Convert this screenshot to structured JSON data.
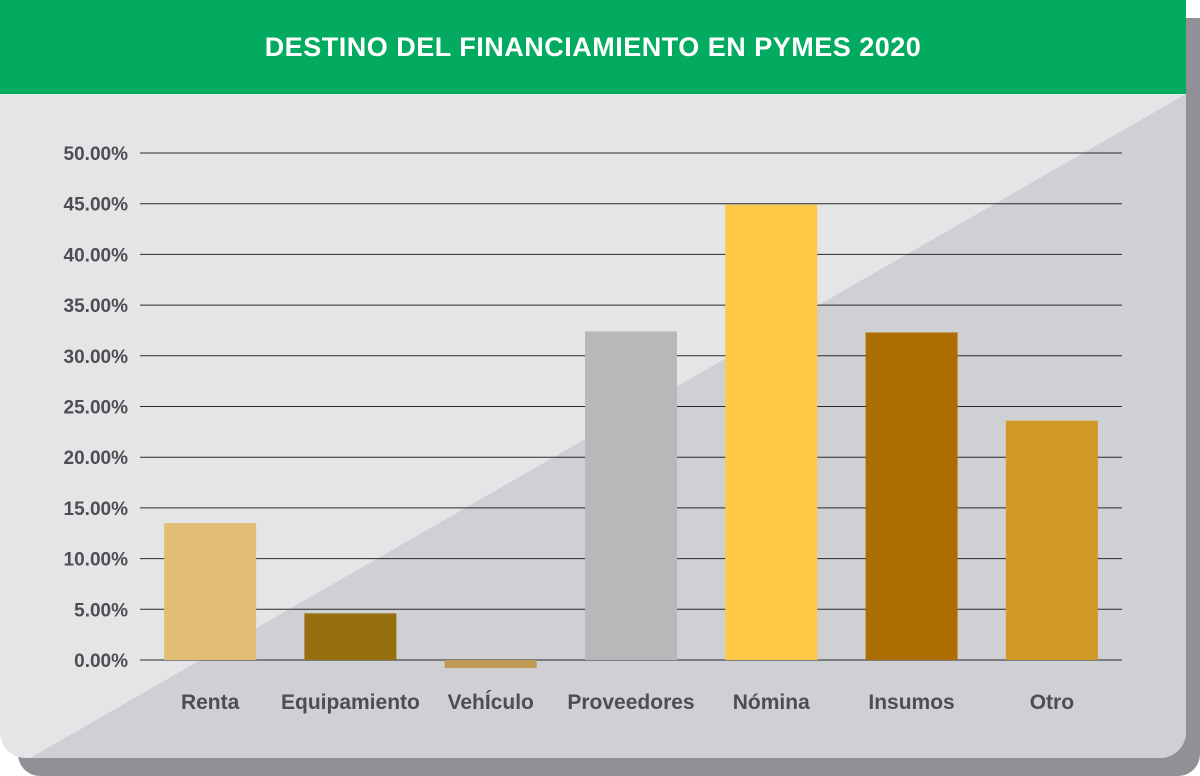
{
  "header": {
    "title": "DESTINO DEL FINANCIAMIENTO EN PYMES 2020"
  },
  "colors": {
    "header": "#02ab60",
    "panel": "#e4e5e7",
    "panel_diagonal": "#cfd0d3",
    "gridline": "#2a2a2a",
    "text": "#4e4e52"
  },
  "chart_data": {
    "type": "bar",
    "title": "DESTINO DEL FINANCIAMIENTO EN PYMES 2020",
    "xlabel": "",
    "ylabel": "",
    "ylim": [
      0,
      0.5
    ],
    "grid": true,
    "y_ticks": [
      "0.00%",
      "5.00%",
      "10.00%",
      "15.00%",
      "20.00%",
      "25.00%",
      "30.00%",
      "35.00%",
      "40.00%",
      "45.00%",
      "50.00%"
    ],
    "categories": [
      "Renta",
      "Equipamiento",
      "VehÍculo",
      "Proveedores",
      "Nómina",
      "Insumos",
      "Otro"
    ],
    "values": [
      0.135,
      0.046,
      -0.008,
      0.324,
      0.449,
      0.323,
      0.236
    ],
    "bar_colors": [
      "#e1be73",
      "#96700f",
      "#c09a55",
      "#b7b8ba",
      "#fdc946",
      "#ac6e02",
      "#d19926"
    ]
  }
}
